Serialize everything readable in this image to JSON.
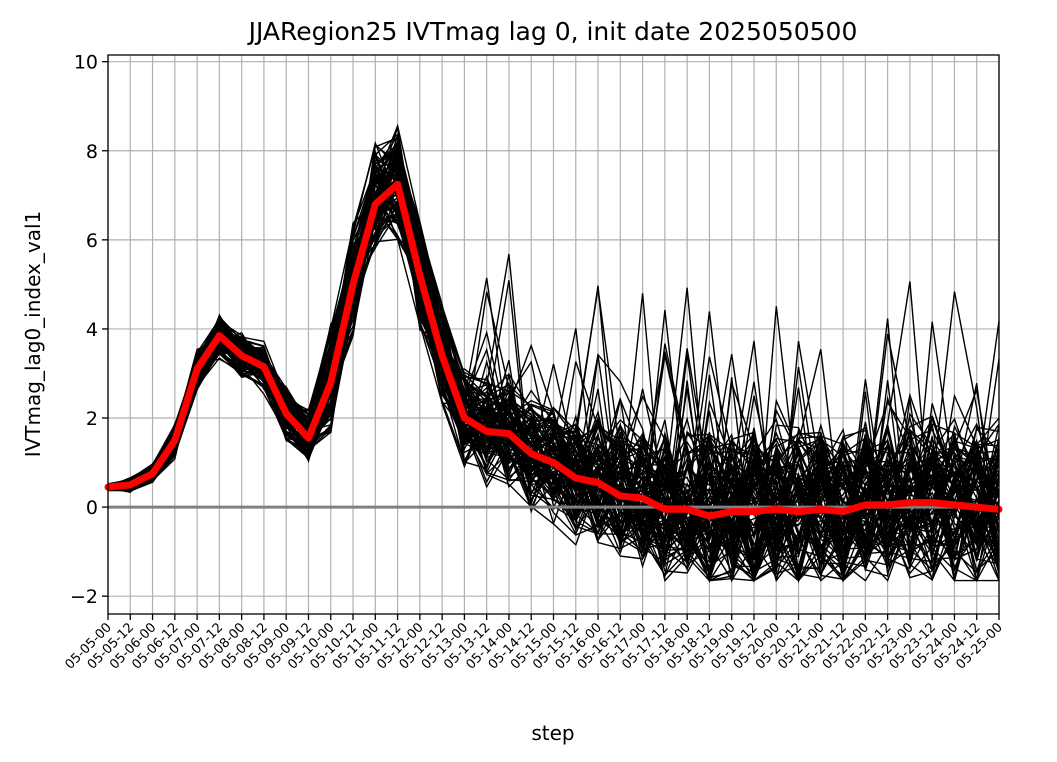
{
  "chart_data": {
    "type": "line",
    "title": "JJARegion25 IVTmag lag 0, init date 2025050500",
    "xlabel": "step",
    "ylabel": "IVTmag_lag0_index_val1",
    "ylim": [
      -2.4,
      10.15
    ],
    "yticks": [
      -2,
      0,
      2,
      4,
      6,
      8,
      10
    ],
    "ytick_labels": [
      "−2",
      "0",
      "2",
      "4",
      "6",
      "8",
      "10"
    ],
    "grid": true,
    "zero_line": 0,
    "categories": [
      "05-05-00",
      "05-05-12",
      "05-06-00",
      "05-06-12",
      "05-07-00",
      "05-07-12",
      "05-08-00",
      "05-08-12",
      "05-09-00",
      "05-09-12",
      "05-10-00",
      "05-10-12",
      "05-11-00",
      "05-11-12",
      "05-12-00",
      "05-12-12",
      "05-13-00",
      "05-13-12",
      "05-14-00",
      "05-14-12",
      "05-15-00",
      "05-15-12",
      "05-16-00",
      "05-16-12",
      "05-17-00",
      "05-17-12",
      "05-18-00",
      "05-18-12",
      "05-19-00",
      "05-19-12",
      "05-20-00",
      "05-20-12",
      "05-21-00",
      "05-21-12",
      "05-22-00",
      "05-22-12",
      "05-23-00",
      "05-23-12",
      "05-24-00",
      "05-24-12",
      "05-25-00"
    ],
    "ensemble_member_count": 100,
    "colors": {
      "members": "#000000",
      "mean": "#ff0000",
      "zero_line": "#808080",
      "grid": "#b0b0b0"
    },
    "series": [
      {
        "values": [
          0.45,
          0.5,
          0.75,
          1.5,
          3.1,
          3.85,
          3.4,
          3.15,
          2.1,
          1.55,
          2.8,
          5.0,
          6.8,
          7.25,
          5.2,
          3.4,
          2.0,
          1.7,
          1.65,
          1.2,
          1.0,
          0.65,
          0.55,
          0.25,
          0.2,
          -0.05,
          -0.05,
          -0.2,
          -0.1,
          -0.1,
          -0.05,
          -0.1,
          -0.05,
          -0.1,
          0.05,
          0.05,
          0.1,
          0.1,
          0.05,
          0.0,
          -0.05
        ]
      }
    ]
  }
}
